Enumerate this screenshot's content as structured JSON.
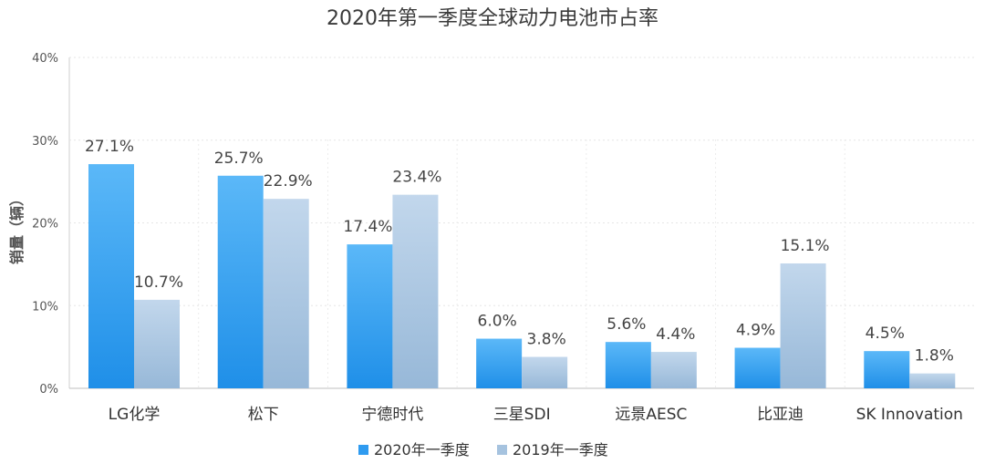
{
  "chart_data": {
    "type": "bar",
    "title": "2020年第一季度全球动力电池市占率",
    "ylabel": "销量（辆）",
    "xlabel": "",
    "ylim": [
      0,
      40
    ],
    "yticks": [
      0,
      10,
      20,
      30,
      40
    ],
    "ytick_labels": [
      "0%",
      "10%",
      "20%",
      "30%",
      "40%"
    ],
    "grid": true,
    "legend_position": "bottom-center",
    "categories": [
      "LG化学",
      "松下",
      "宁德时代",
      "三星SDI",
      "远景AESC",
      "比亚迪",
      "SK Innovation"
    ],
    "series": [
      {
        "name": "2020年一季度",
        "values": [
          27.1,
          25.7,
          17.4,
          6.0,
          5.6,
          4.9,
          4.5
        ],
        "labels": [
          "27.1%",
          "25.7%",
          "17.4%",
          "6.0%",
          "5.6%",
          "4.9%",
          "4.5%"
        ],
        "color": "#2f9bf0",
        "color_light": "#55b4f8"
      },
      {
        "name": "2019年一季度",
        "values": [
          10.7,
          22.9,
          23.4,
          3.8,
          4.4,
          15.1,
          1.8
        ],
        "labels": [
          "10.7%",
          "22.9%",
          "23.4%",
          "3.8%",
          "4.4%",
          "15.1%",
          "1.8%"
        ],
        "color": "#a6c3df",
        "color_light": "#c4d8ec"
      }
    ]
  }
}
